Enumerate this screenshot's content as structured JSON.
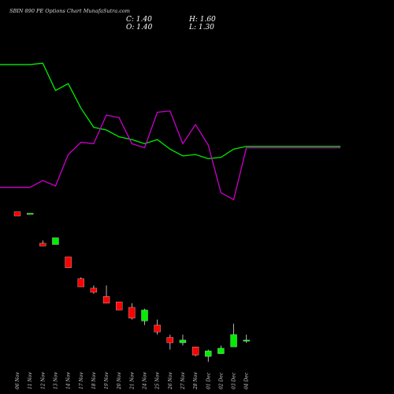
{
  "title": "SBIN 890 PE Options Chart MunafaSutra.com",
  "ohlc": {
    "close_label": "C: 1.40",
    "high_label": "H: 1.60",
    "open_label": "O: 1.40",
    "low_label": "L: 1.30"
  },
  "chart_data": {
    "type": "candlestick",
    "categories": [
      "06 Nov",
      "11 Nov",
      "12 Nov",
      "13 Nov",
      "14 Nov",
      "17 Nov",
      "18 Nov",
      "19 Nov",
      "20 Nov",
      "21 Nov",
      "24 Nov",
      "25 Nov",
      "26 Nov",
      "27 Nov",
      "28 Nov",
      "01 Dec",
      "02 Dec",
      "03 Dec",
      "04 Dec"
    ],
    "candles": [
      {
        "open": 6.1,
        "high": 6.1,
        "low": 5.95,
        "close": 5.95,
        "color": "red"
      },
      {
        "open": 6.05,
        "high": 6.05,
        "low": 6.05,
        "close": 6.05,
        "color": "green"
      },
      {
        "open": 4.95,
        "high": 5.05,
        "low": 4.85,
        "close": 4.85,
        "color": "red"
      },
      {
        "open": 4.9,
        "high": 5.15,
        "low": 4.9,
        "close": 5.15,
        "color": "green"
      },
      {
        "open": 4.45,
        "high": 4.45,
        "low": 4.05,
        "close": 4.05,
        "color": "red"
      },
      {
        "open": 3.65,
        "high": 3.7,
        "low": 3.35,
        "close": 3.35,
        "color": "red"
      },
      {
        "open": 3.3,
        "high": 3.4,
        "low": 3.1,
        "close": 3.15,
        "color": "red"
      },
      {
        "open": 3.0,
        "high": 3.4,
        "low": 2.8,
        "close": 2.75,
        "color": "red"
      },
      {
        "open": 2.8,
        "high": 2.8,
        "low": 2.5,
        "close": 2.5,
        "color": "red"
      },
      {
        "open": 2.6,
        "high": 2.75,
        "low": 2.15,
        "close": 2.2,
        "color": "red"
      },
      {
        "open": 2.1,
        "high": 2.55,
        "low": 1.95,
        "close": 2.5,
        "color": "green"
      },
      {
        "open": 1.95,
        "high": 2.15,
        "low": 1.6,
        "close": 1.7,
        "color": "red"
      },
      {
        "open": 1.5,
        "high": 1.6,
        "low": 1.05,
        "close": 1.3,
        "color": "red"
      },
      {
        "open": 1.3,
        "high": 1.6,
        "low": 1.2,
        "close": 1.4,
        "color": "green"
      },
      {
        "open": 1.15,
        "high": 1.15,
        "low": 0.8,
        "close": 0.85,
        "color": "red"
      },
      {
        "open": 0.8,
        "high": 1.05,
        "low": 0.6,
        "close": 1.0,
        "color": "green"
      },
      {
        "open": 0.9,
        "high": 1.2,
        "low": 0.9,
        "close": 1.1,
        "color": "green"
      },
      {
        "open": 1.15,
        "high": 2.0,
        "low": 1.2,
        "close": 1.6,
        "color": "green"
      },
      {
        "open": 1.4,
        "high": 1.6,
        "low": 1.3,
        "close": 1.4,
        "color": "green"
      }
    ],
    "ylim": [
      0,
      13
    ],
    "overlay_lines": [
      {
        "color": "#00ee00",
        "values": [
          11.5,
          11.5,
          11.55,
          10.55,
          10.8,
          9.9,
          9.2,
          9.1,
          8.85,
          8.75,
          8.6,
          8.75,
          8.4,
          8.15,
          8.2,
          8.05,
          8.1,
          8.4,
          8.5
        ]
      },
      {
        "color": "#cc00cc",
        "values": [
          7.0,
          7.0,
          7.25,
          7.05,
          8.2,
          8.65,
          8.6,
          9.65,
          9.55,
          8.6,
          8.45,
          9.75,
          9.8,
          8.6,
          9.3,
          8.55,
          6.8,
          6.55,
          8.45
        ]
      }
    ],
    "grid": false,
    "legend": "none"
  }
}
